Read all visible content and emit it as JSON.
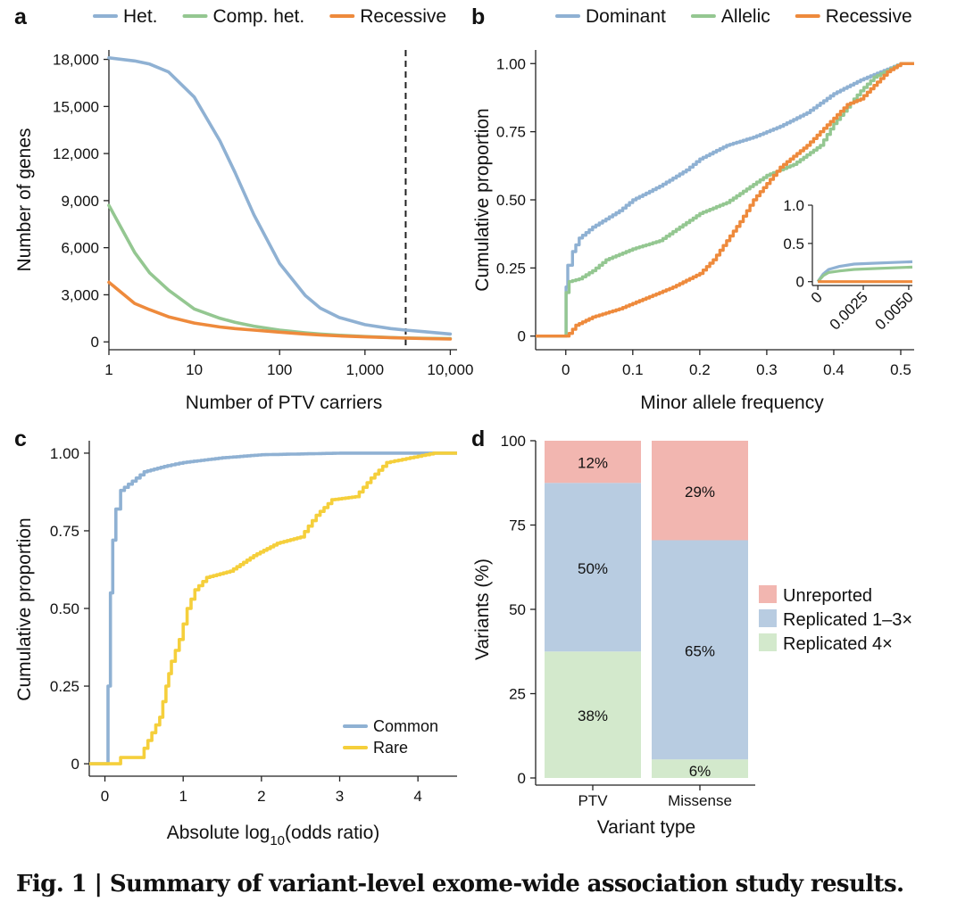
{
  "caption": {
    "label": "Fig. 1 | Summary of variant-level exome-wide association study results."
  },
  "colors": {
    "blue": "#8fb1d3",
    "green": "#94c791",
    "orange": "#ee8a3c",
    "yellow": "#f5cf3b",
    "unreported": "#f2b6b0",
    "replicated13": "#b8cce1",
    "replicated4": "#d3e9cc"
  },
  "chart_data": [
    {
      "panel": "a",
      "type": "line",
      "xlabel": "Number of PTV carriers",
      "ylabel": "Number of genes",
      "x_scale": "log",
      "xlim": [
        1,
        12000
      ],
      "ylim": [
        -500,
        18600
      ],
      "xticks": [
        1,
        10,
        100,
        1000,
        10000
      ],
      "xtick_labels": [
        "1",
        "10",
        "100",
        "1,000",
        "10,000"
      ],
      "yticks": [
        0,
        3000,
        6000,
        9000,
        12000,
        15000,
        18000
      ],
      "ytick_labels": [
        "0",
        "3,000",
        "6,000",
        "9,000",
        "12,000",
        "15,000",
        "18,000"
      ],
      "legend_position": "top",
      "vline": 3000,
      "series": [
        {
          "name": "Het.",
          "color": "blue",
          "x": [
            1,
            2,
            3,
            5,
            10,
            20,
            30,
            50,
            100,
            200,
            300,
            500,
            1000,
            2000,
            3000,
            5000,
            10000
          ],
          "y": [
            18100,
            17900,
            17700,
            17200,
            15600,
            12800,
            10800,
            8100,
            5000,
            2950,
            2150,
            1550,
            1100,
            850,
            750,
            650,
            500
          ]
        },
        {
          "name": "Comp. het.",
          "color": "green",
          "x": [
            1,
            2,
            3,
            5,
            10,
            20,
            30,
            50,
            100,
            200,
            300,
            500,
            1000,
            2000,
            3000,
            5000,
            10000
          ],
          "y": [
            8700,
            5700,
            4400,
            3300,
            2100,
            1500,
            1250,
            1000,
            750,
            580,
            500,
            420,
            340,
            280,
            250,
            230,
            210
          ]
        },
        {
          "name": "Recessive",
          "color": "orange",
          "x": [
            1,
            2,
            3,
            5,
            10,
            20,
            30,
            50,
            100,
            200,
            300,
            500,
            1000,
            2000,
            3000,
            5000,
            10000
          ],
          "y": [
            3800,
            2450,
            2050,
            1600,
            1200,
            950,
            850,
            750,
            620,
            500,
            440,
            380,
            320,
            270,
            240,
            210,
            180
          ]
        }
      ]
    },
    {
      "panel": "b",
      "type": "line",
      "xlabel": "Minor allele frequency",
      "ylabel": "Cumulative proportion",
      "xlim": [
        -0.045,
        0.52
      ],
      "ylim": [
        -0.05,
        1.05
      ],
      "xticks": [
        0,
        0.1,
        0.2,
        0.3,
        0.4,
        0.5
      ],
      "xtick_labels": [
        "0",
        "0.1",
        "0.2",
        "0.3",
        "0.4",
        "0.5"
      ],
      "yticks": [
        0,
        0.25,
        0.5,
        0.75,
        1
      ],
      "ytick_labels": [
        "0",
        "0.25",
        "0.50",
        "0.75",
        "1.00"
      ],
      "legend_position": "top",
      "series": [
        {
          "name": "Dominant",
          "color": "blue",
          "x": [
            -0.045,
            0,
            0.0005,
            0.003,
            0.01,
            0.02,
            0.04,
            0.06,
            0.08,
            0.1,
            0.14,
            0.18,
            0.2,
            0.24,
            0.28,
            0.32,
            0.36,
            0.4,
            0.44,
            0.48,
            0.5,
            0.52
          ],
          "y": [
            0,
            0,
            0.18,
            0.26,
            0.31,
            0.36,
            0.4,
            0.43,
            0.46,
            0.5,
            0.55,
            0.61,
            0.65,
            0.7,
            0.73,
            0.77,
            0.82,
            0.89,
            0.94,
            0.98,
            1.0,
            1.0
          ]
        },
        {
          "name": "Allelic",
          "color": "green",
          "x": [
            -0.045,
            0,
            0.0005,
            0.005,
            0.02,
            0.04,
            0.06,
            0.1,
            0.14,
            0.17,
            0.2,
            0.24,
            0.27,
            0.3,
            0.34,
            0.38,
            0.4,
            0.44,
            0.46,
            0.5,
            0.52
          ],
          "y": [
            0,
            0,
            0.16,
            0.2,
            0.21,
            0.24,
            0.28,
            0.32,
            0.35,
            0.4,
            0.45,
            0.49,
            0.54,
            0.59,
            0.63,
            0.7,
            0.78,
            0.9,
            0.95,
            1.0,
            1.0
          ]
        },
        {
          "name": "Recessive",
          "color": "orange",
          "x": [
            -0.045,
            0,
            0.005,
            0.015,
            0.04,
            0.08,
            0.12,
            0.16,
            0.2,
            0.22,
            0.24,
            0.26,
            0.28,
            0.3,
            0.32,
            0.34,
            0.36,
            0.38,
            0.4,
            0.42,
            0.44,
            0.46,
            0.48,
            0.5,
            0.52
          ],
          "y": [
            0,
            0,
            0.01,
            0.04,
            0.07,
            0.1,
            0.14,
            0.18,
            0.23,
            0.28,
            0.35,
            0.42,
            0.5,
            0.56,
            0.62,
            0.66,
            0.7,
            0.75,
            0.8,
            0.85,
            0.87,
            0.92,
            0.97,
            1.0,
            1.0
          ]
        }
      ],
      "inset": {
        "xlim": [
          -0.0003,
          0.0052
        ],
        "ylim": [
          -0.05,
          1.0
        ],
        "xticks": [
          0,
          0.0025,
          0.005
        ],
        "xtick_labels": [
          "0",
          "0.0025",
          "0.0050"
        ],
        "yticks": [
          0,
          0.5,
          1
        ],
        "ytick_labels": [
          "0",
          "0.5",
          "1.0"
        ],
        "series": [
          {
            "name": "Dominant",
            "color": "blue",
            "x": [
              0,
              0.0003,
              0.0006,
              0.0012,
              0.002,
              0.003,
              0.004,
              0.0052
            ],
            "y": [
              0,
              0.1,
              0.16,
              0.2,
              0.23,
              0.24,
              0.25,
              0.26
            ]
          },
          {
            "name": "Allelic",
            "color": "green",
            "x": [
              0,
              0.0003,
              0.0006,
              0.0012,
              0.002,
              0.003,
              0.004,
              0.0052
            ],
            "y": [
              0,
              0.08,
              0.12,
              0.14,
              0.16,
              0.17,
              0.18,
              0.19
            ]
          },
          {
            "name": "Recessive",
            "color": "orange",
            "x": [
              0,
              0.0052
            ],
            "y": [
              0,
              0
            ]
          }
        ]
      }
    },
    {
      "panel": "c",
      "type": "line",
      "xlabel_main": "Absolute log",
      "xlabel_sub": "10",
      "xlabel_rest": "(odds ratio)",
      "ylabel": "Cumulative proportion",
      "xlim": [
        -0.2,
        4.5
      ],
      "ylim": [
        -0.04,
        1.04
      ],
      "xticks": [
        0,
        1,
        2,
        3,
        4
      ],
      "xtick_labels": [
        "0",
        "1",
        "2",
        "3",
        "4"
      ],
      "yticks": [
        0,
        0.25,
        0.5,
        0.75,
        1
      ],
      "ytick_labels": [
        "0",
        "0.25",
        "0.50",
        "0.75",
        "1.00"
      ],
      "legend_position": "bottom-right",
      "series": [
        {
          "name": "Common",
          "color": "blue",
          "x": [
            -0.2,
            0.02,
            0.04,
            0.07,
            0.1,
            0.14,
            0.2,
            0.3,
            0.5,
            0.8,
            1.0,
            1.5,
            2.0,
            3.0,
            4.0,
            4.5
          ],
          "y": [
            0,
            0,
            0.25,
            0.55,
            0.72,
            0.82,
            0.88,
            0.9,
            0.94,
            0.96,
            0.97,
            0.985,
            0.995,
            1.0,
            1.0,
            1.0
          ]
        },
        {
          "name": "Rare",
          "color": "yellow",
          "x": [
            -0.2,
            0.15,
            0.2,
            0.45,
            0.5,
            0.6,
            0.7,
            0.78,
            0.85,
            0.95,
            1.05,
            1.15,
            1.3,
            1.6,
            1.9,
            2.2,
            2.5,
            2.7,
            2.9,
            3.2,
            3.4,
            3.6,
            3.8,
            4.0,
            4.2,
            4.5
          ],
          "y": [
            0,
            0,
            0.02,
            0.02,
            0.05,
            0.1,
            0.15,
            0.25,
            0.33,
            0.4,
            0.5,
            0.56,
            0.6,
            0.62,
            0.67,
            0.71,
            0.73,
            0.8,
            0.85,
            0.86,
            0.92,
            0.97,
            0.98,
            0.99,
            1.0,
            1.0
          ]
        }
      ]
    },
    {
      "panel": "d",
      "type": "bar",
      "stacked": true,
      "xlabel": "Variant type",
      "ylabel": "Variants (%)",
      "ylim": [
        0,
        100
      ],
      "yticks": [
        0,
        25,
        50,
        75,
        100
      ],
      "ytick_labels": [
        "0",
        "25",
        "50",
        "75",
        "100"
      ],
      "categories": [
        "PTV",
        "Missense"
      ],
      "legend_position": "right",
      "series": [
        {
          "name": "Replicated 4×",
          "color": "replicated4",
          "values": [
            37.5,
            5.5
          ],
          "labels": [
            "38%",
            "6%"
          ]
        },
        {
          "name": "Replicated 1–3×",
          "color": "replicated13",
          "values": [
            50,
            65
          ],
          "labels": [
            "50%",
            "65%"
          ]
        },
        {
          "name": "Unreported",
          "color": "unreported",
          "values": [
            12.5,
            29.5
          ],
          "labels": [
            "12%",
            "29%"
          ]
        }
      ],
      "legend_order": [
        "Unreported",
        "Replicated 1–3×",
        "Replicated 4×"
      ]
    }
  ],
  "panel_letters": [
    "a",
    "b",
    "c",
    "d"
  ]
}
